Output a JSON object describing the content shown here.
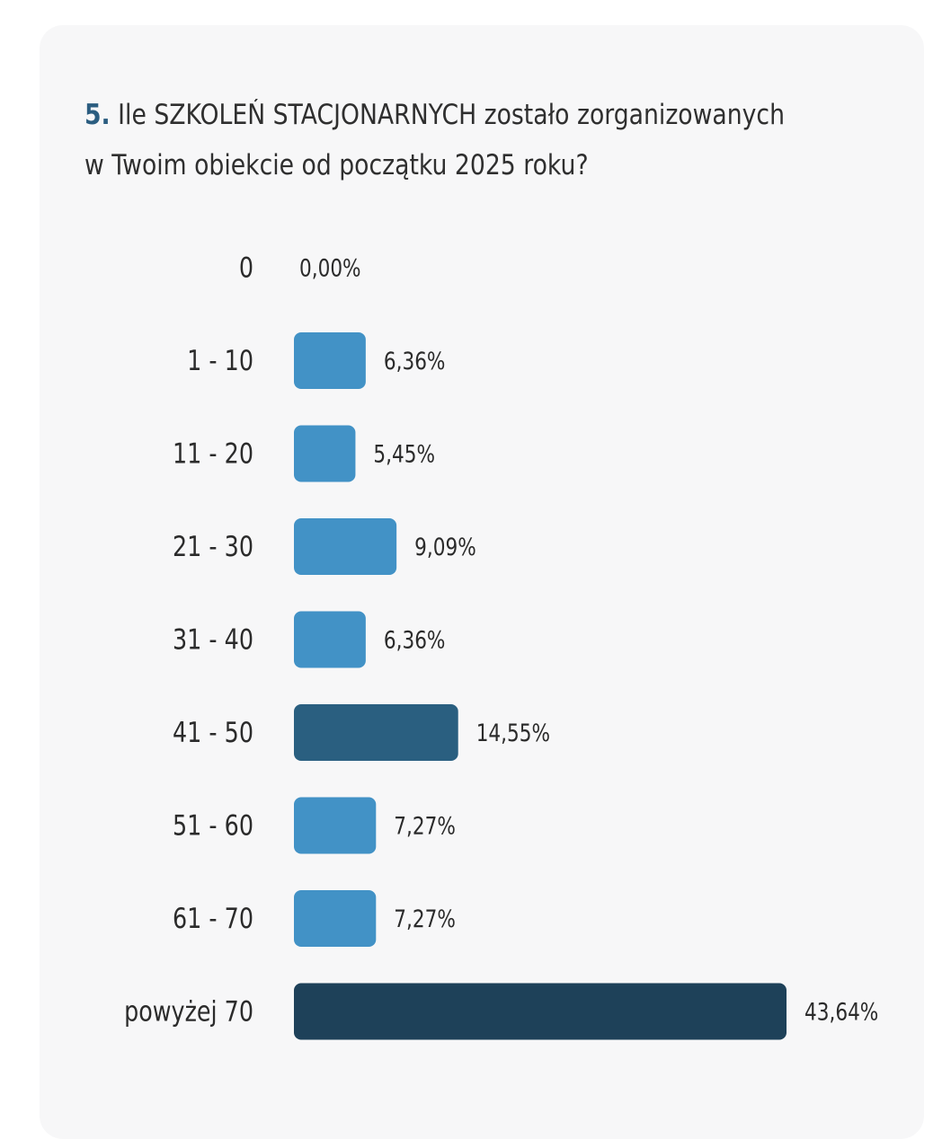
{
  "question": {
    "number": "5.",
    "line1": "Ile SZKOLEŃ STACJONARNYCH zostało zorganizowanych",
    "line2": "w Twoim obiekcie od początku 2025 roku?"
  },
  "colors": {
    "bar_default": "#4292c6",
    "bar_mid": "#2a5f80",
    "bar_top": "#1e4159",
    "question_number": "#2b5d80",
    "text": "#2b2b2b",
    "card_background": "#f7f7f8"
  },
  "chart_data": {
    "type": "bar",
    "orientation": "horizontal",
    "title": "5. Ile SZKOLEŃ STACJONARNYCH zostało zorganizowanych w Twoim obiekcie od początku 2025 roku?",
    "xlabel": "",
    "ylabel": "",
    "unit": "%",
    "categories": [
      "0",
      "1 - 10",
      "11 - 20",
      "21 - 30",
      "31 - 40",
      "41 - 50",
      "51 - 60",
      "61 - 70",
      "powyżej 70"
    ],
    "values": [
      0.0,
      6.36,
      5.45,
      9.09,
      6.36,
      14.55,
      7.27,
      7.27,
      43.64
    ],
    "labels": [
      "0,00%",
      "6,36%",
      "5,45%",
      "9,09%",
      "6,36%",
      "14,55%",
      "7,27%",
      "7,27%",
      "43,64%"
    ],
    "highlight": {
      "41 - 50": "mid",
      "powyżej 70": "top"
    },
    "xlim": [
      0,
      43.64
    ],
    "grid": false,
    "legend": "none"
  }
}
